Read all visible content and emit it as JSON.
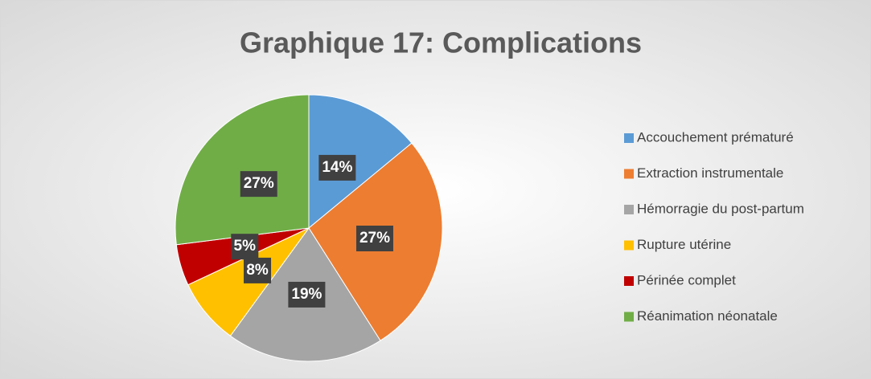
{
  "chart_data": {
    "type": "pie",
    "title": "Graphique 17: Complications",
    "categories": [
      "Accouchement prématuré",
      "Extraction instrumentale",
      "Hémorragie du post-partum",
      "Rupture utérine",
      "Périnée complet",
      "Réanimation néonatale"
    ],
    "values": [
      14,
      27,
      19,
      8,
      5,
      27
    ],
    "value_labels": [
      "14%",
      "27%",
      "19%",
      "8%",
      "5%",
      "27%"
    ],
    "colors": [
      "#5b9bd5",
      "#ed7d31",
      "#a5a5a5",
      "#ffc000",
      "#c00000",
      "#70ad47"
    ],
    "legend": "right"
  }
}
